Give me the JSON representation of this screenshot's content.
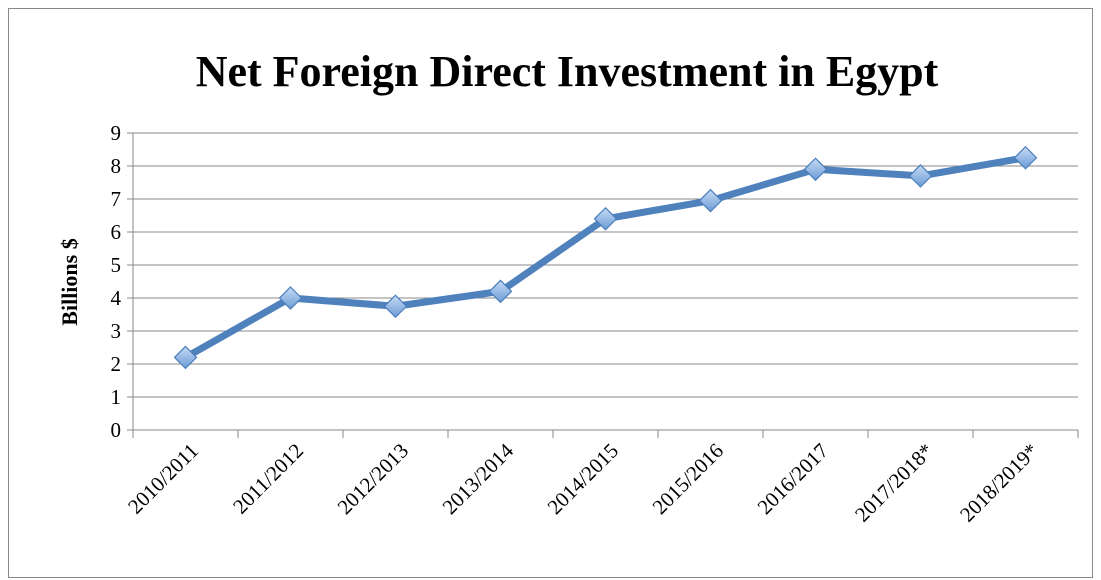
{
  "chart_data": {
    "type": "line",
    "title": "Net Foreign Direct Investment in Egypt",
    "y_label": "Billions $",
    "categories": [
      "2010/2011",
      "2011/2012",
      "2012/2013",
      "2013/2014",
      "2014/2015",
      "2015/2016",
      "2016/2017",
      "2017/2018*",
      "2018/2019*"
    ],
    "values": [
      2.2,
      4.0,
      3.75,
      4.2,
      6.4,
      6.95,
      7.9,
      7.7,
      8.25
    ],
    "color": "#4f81bd",
    "ylim": [
      0,
      9
    ],
    "yticks": [
      0,
      1,
      2,
      3,
      4,
      5,
      6,
      7,
      8,
      9
    ],
    "grid": true
  }
}
